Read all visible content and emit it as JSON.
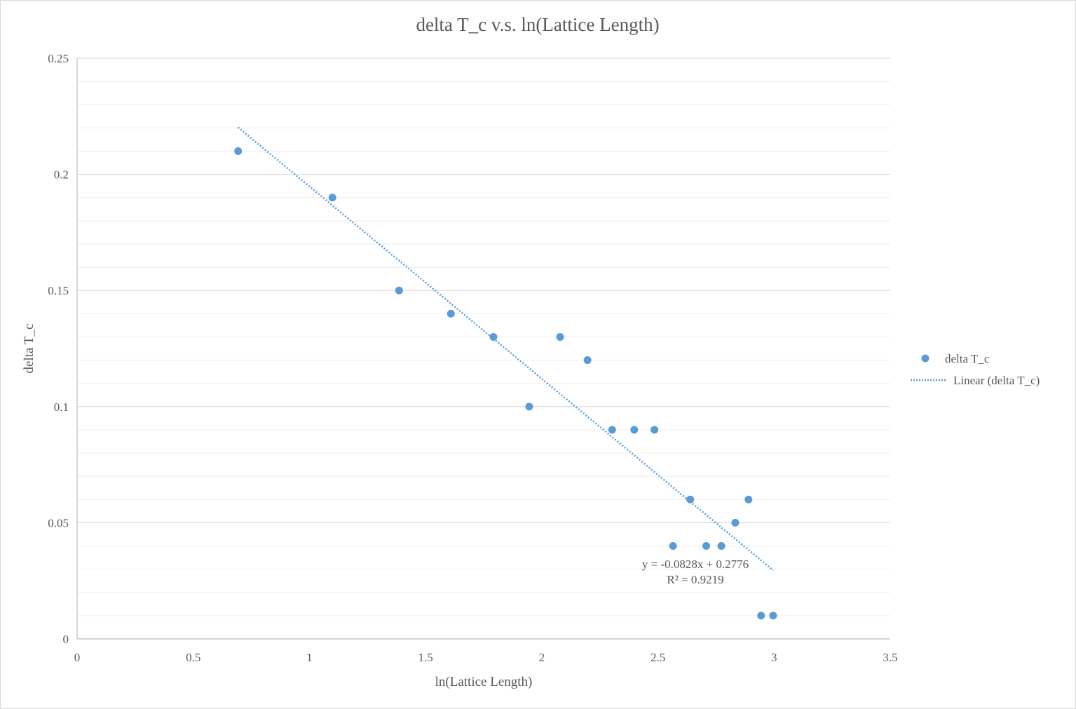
{
  "chart_data": {
    "type": "scatter",
    "title": "delta T_c v.s. ln(Lattice Length)",
    "xlabel": "ln(Lattice Length)",
    "ylabel": "delta T_c",
    "xlim": [
      0,
      3.5
    ],
    "ylim": [
      0,
      0.25
    ],
    "x_ticks": [
      "0",
      "0.5",
      "1",
      "1.5",
      "2",
      "2.5",
      "3",
      "3.5"
    ],
    "y_ticks": [
      "0",
      "0.05",
      "0.1",
      "0.15",
      "0.2",
      "0.25"
    ],
    "x_tick_values": [
      0,
      0.5,
      1,
      1.5,
      2,
      2.5,
      3,
      3.5
    ],
    "y_tick_values": [
      0,
      0.05,
      0.1,
      0.15,
      0.2,
      0.25
    ],
    "y_minor_step": 0.01,
    "grid": true,
    "legend_position": "right",
    "series": [
      {
        "name": "delta T_c",
        "color": "#5b9bd5",
        "points": [
          {
            "x": 0.693,
            "y": 0.21
          },
          {
            "x": 1.099,
            "y": 0.19
          },
          {
            "x": 1.386,
            "y": 0.15
          },
          {
            "x": 1.609,
            "y": 0.14
          },
          {
            "x": 1.792,
            "y": 0.13
          },
          {
            "x": 1.946,
            "y": 0.1
          },
          {
            "x": 2.079,
            "y": 0.13
          },
          {
            "x": 2.197,
            "y": 0.12
          },
          {
            "x": 2.303,
            "y": 0.09
          },
          {
            "x": 2.398,
            "y": 0.09
          },
          {
            "x": 2.485,
            "y": 0.09
          },
          {
            "x": 2.565,
            "y": 0.04
          },
          {
            "x": 2.639,
            "y": 0.06
          },
          {
            "x": 2.708,
            "y": 0.04
          },
          {
            "x": 2.773,
            "y": 0.04
          },
          {
            "x": 2.833,
            "y": 0.05
          },
          {
            "x": 2.89,
            "y": 0.06
          },
          {
            "x": 2.944,
            "y": 0.01
          },
          {
            "x": 2.996,
            "y": 0.01
          }
        ]
      }
    ],
    "trendline": {
      "name": "Linear (delta T_c)",
      "style": "dotted",
      "color": "#5b9bd5",
      "slope": -0.0828,
      "intercept": 0.2776,
      "x_range": [
        0.693,
        2.996
      ],
      "equation": "y = -0.0828x + 0.2776",
      "r_squared": "R² = 0.9219"
    }
  }
}
